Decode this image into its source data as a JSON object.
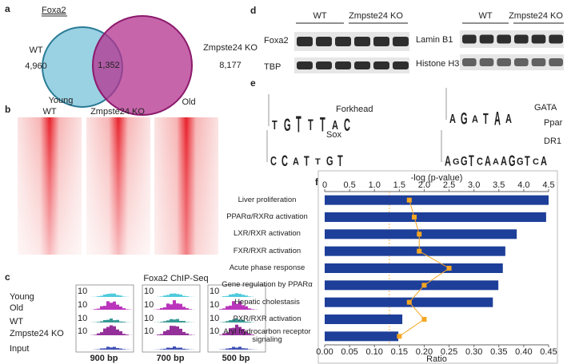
{
  "panels": {
    "a": {
      "label": "a",
      "title": "Foxa2",
      "wt_label": "WT",
      "wt_count": "4,960",
      "overlap": "1,352",
      "ko_label": "Zmpste24  KO",
      "ko_count": "8,177"
    },
    "b": {
      "label": "b",
      "young": "Young",
      "old": "Old",
      "columns": [
        "WT",
        "Zmpste24 KO"
      ]
    },
    "c": {
      "label": "c",
      "title": "Foxa2 ChIP-Seq",
      "rows": [
        "Young",
        "Old",
        "WT",
        "Zmpste24 KO",
        "Input"
      ],
      "scale": "10",
      "widths": [
        "900 bp",
        "700 bp",
        "500 bp"
      ]
    },
    "d": {
      "label": "d",
      "groups": [
        "WT",
        "Zmpste24 KO"
      ],
      "proteins_left": [
        "Foxa2",
        "TBP"
      ],
      "proteins_right": [
        "Lamin B1",
        "Histone H3"
      ]
    },
    "e": {
      "label": "e",
      "motifs": [
        "Forkhead",
        "GATA",
        "Sox",
        "Ppar",
        "DR1"
      ],
      "logos": [
        "TGTTTAC",
        "AGATAA",
        "CCATTGT",
        "AGGTCAAAGGTCA"
      ]
    },
    "f": {
      "label": "f"
    }
  },
  "chart_data": {
    "type": "bar",
    "orientation": "horizontal",
    "categories": [
      "Liver proliferation",
      "PPARα/RXRα activation",
      "LXR/RXR activation",
      "FXR/RXR activation",
      "Acute phase response",
      "Gene regulation by PPARα",
      "Hepatic cholestasis",
      "PXR/RXR activation",
      "Aryl hydrocarbon receptor signaling"
    ],
    "series": [
      {
        "type": "bar",
        "axis": "x2",
        "color": "#1d3f99",
        "values": [
          4.5,
          4.45,
          3.86,
          3.63,
          3.58,
          3.49,
          3.38,
          1.56,
          1.48
        ]
      },
      {
        "type": "line",
        "axis": "x",
        "color": "#f5a623",
        "values": [
          0.17,
          0.18,
          0.19,
          0.19,
          0.25,
          0.2,
          0.17,
          0.2,
          0.15
        ]
      }
    ],
    "xlabel": "Ratio",
    "xlim": [
      0,
      0.45
    ],
    "xticks": [
      {
        "value": 0,
        "label": "0.00"
      },
      {
        "value": 0.05,
        "label": "0.05"
      },
      {
        "value": 0.1,
        "label": "0.10"
      },
      {
        "value": 0.15,
        "label": "0.15"
      },
      {
        "value": 0.2,
        "label": "0.20"
      },
      {
        "value": 0.25,
        "label": "0.25"
      },
      {
        "value": 0.3,
        "label": "0.30"
      },
      {
        "value": 0.35,
        "label": "0.35"
      },
      {
        "value": 0.4,
        "label": "0.40"
      },
      {
        "value": 0.45,
        "label": "0.45"
      }
    ],
    "x2label": "-log (p-value)",
    "x2lim": [
      0,
      4.5
    ],
    "x2ticks": [
      0,
      0.5,
      {
        "value": 1,
        "label": "1.0"
      },
      1.5,
      {
        "value": 2,
        "label": "2.0"
      },
      2.5,
      {
        "value": 3,
        "label": "3.0"
      },
      3.5,
      {
        "value": 4,
        "label": "4.0"
      },
      4.5
    ],
    "threshold": 1.3
  }
}
